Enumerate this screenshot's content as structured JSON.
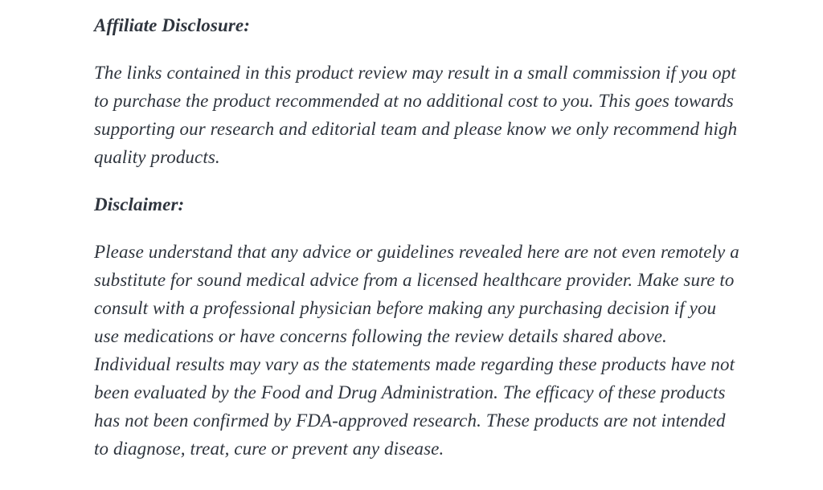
{
  "article": {
    "sections": [
      {
        "heading": "Affiliate Disclosure:",
        "body": "The links contained in this product review may result in a small commission if you opt to purchase the product recommended at no additional cost to you. This goes towards supporting our research and editorial team and please know we only recommend high quality products."
      },
      {
        "heading": "Disclaimer:",
        "body": "Please understand that any advice or guidelines revealed here are not even remotely a substitute for sound medical advice from a licensed healthcare provider. Make sure to consult with a professional physician before making any purchasing decision if you use medications or have concerns following the review details shared above. Individual results may vary as the statements made regarding these products have not been evaluated by the Food and Drug Administration. The efficacy of these products has not been confirmed by FDA-approved research. These products are not intended to diagnose, treat, cure or prevent any disease."
      }
    ]
  },
  "colors": {
    "text": "#2f353e",
    "background": "#ffffff"
  }
}
